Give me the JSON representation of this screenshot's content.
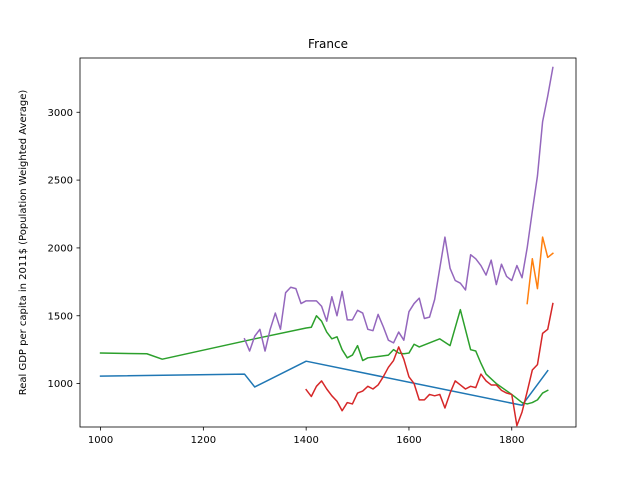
{
  "chart_data": {
    "type": "line",
    "title": "France",
    "xlabel": "",
    "ylabel": "Real GDP per capita in 2011$ (Population Weighted Average)",
    "xlim": [
      960,
      1925
    ],
    "ylim": [
      680,
      3400
    ],
    "xticks": [
      1000,
      1200,
      1400,
      1600,
      1800
    ],
    "yticks": [
      1000,
      1500,
      2000,
      2500,
      3000
    ],
    "grid": false,
    "series": [
      {
        "color": "#1f77b4",
        "points": [
          [
            1000,
            1055
          ],
          [
            1280,
            1070
          ],
          [
            1300,
            975
          ],
          [
            1400,
            1165
          ],
          [
            1820,
            840
          ],
          [
            1870,
            1095
          ]
        ]
      },
      {
        "color": "#ff7f0e",
        "points": [
          [
            1830,
            1590
          ],
          [
            1840,
            1920
          ],
          [
            1850,
            1700
          ],
          [
            1860,
            2080
          ],
          [
            1870,
            1930
          ],
          [
            1880,
            1960
          ]
        ]
      },
      {
        "color": "#2ca02c",
        "points": [
          [
            1000,
            1225
          ],
          [
            1090,
            1220
          ],
          [
            1120,
            1180
          ],
          [
            1300,
            1330
          ],
          [
            1400,
            1410
          ],
          [
            1410,
            1415
          ],
          [
            1420,
            1500
          ],
          [
            1430,
            1460
          ],
          [
            1440,
            1380
          ],
          [
            1450,
            1330
          ],
          [
            1460,
            1345
          ],
          [
            1470,
            1250
          ],
          [
            1480,
            1190
          ],
          [
            1490,
            1210
          ],
          [
            1500,
            1280
          ],
          [
            1510,
            1170
          ],
          [
            1520,
            1190
          ],
          [
            1540,
            1200
          ],
          [
            1560,
            1210
          ],
          [
            1570,
            1250
          ],
          [
            1580,
            1225
          ],
          [
            1590,
            1220
          ],
          [
            1600,
            1225
          ],
          [
            1610,
            1290
          ],
          [
            1620,
            1270
          ],
          [
            1660,
            1330
          ],
          [
            1680,
            1280
          ],
          [
            1700,
            1545
          ],
          [
            1720,
            1250
          ],
          [
            1730,
            1240
          ],
          [
            1740,
            1150
          ],
          [
            1750,
            1070
          ],
          [
            1770,
            1000
          ],
          [
            1800,
            920
          ],
          [
            1820,
            860
          ],
          [
            1830,
            850
          ],
          [
            1840,
            860
          ],
          [
            1850,
            880
          ],
          [
            1860,
            930
          ],
          [
            1870,
            950
          ]
        ]
      },
      {
        "color": "#d62728",
        "points": [
          [
            1400,
            955
          ],
          [
            1410,
            905
          ],
          [
            1420,
            980
          ],
          [
            1430,
            1020
          ],
          [
            1440,
            960
          ],
          [
            1450,
            910
          ],
          [
            1460,
            870
          ],
          [
            1470,
            800
          ],
          [
            1480,
            860
          ],
          [
            1490,
            850
          ],
          [
            1500,
            930
          ],
          [
            1510,
            945
          ],
          [
            1520,
            980
          ],
          [
            1530,
            960
          ],
          [
            1540,
            990
          ],
          [
            1550,
            1050
          ],
          [
            1560,
            1120
          ],
          [
            1570,
            1170
          ],
          [
            1580,
            1270
          ],
          [
            1590,
            1180
          ],
          [
            1600,
            1050
          ],
          [
            1610,
            1000
          ],
          [
            1620,
            880
          ],
          [
            1630,
            880
          ],
          [
            1640,
            920
          ],
          [
            1650,
            910
          ],
          [
            1660,
            920
          ],
          [
            1670,
            820
          ],
          [
            1680,
            930
          ],
          [
            1690,
            1020
          ],
          [
            1700,
            990
          ],
          [
            1710,
            960
          ],
          [
            1720,
            980
          ],
          [
            1730,
            970
          ],
          [
            1740,
            1070
          ],
          [
            1750,
            1020
          ],
          [
            1760,
            990
          ],
          [
            1770,
            990
          ],
          [
            1780,
            950
          ],
          [
            1790,
            930
          ],
          [
            1800,
            920
          ],
          [
            1810,
            690
          ],
          [
            1820,
            790
          ],
          [
            1830,
            940
          ],
          [
            1840,
            1100
          ],
          [
            1850,
            1140
          ],
          [
            1860,
            1370
          ],
          [
            1870,
            1400
          ],
          [
            1880,
            1590
          ]
        ]
      },
      {
        "color": "#9467bd",
        "points": [
          [
            1280,
            1330
          ],
          [
            1290,
            1240
          ],
          [
            1300,
            1350
          ],
          [
            1310,
            1400
          ],
          [
            1320,
            1240
          ],
          [
            1330,
            1400
          ],
          [
            1340,
            1520
          ],
          [
            1350,
            1400
          ],
          [
            1360,
            1670
          ],
          [
            1370,
            1710
          ],
          [
            1380,
            1700
          ],
          [
            1390,
            1590
          ],
          [
            1400,
            1610
          ],
          [
            1410,
            1610
          ],
          [
            1420,
            1610
          ],
          [
            1430,
            1570
          ],
          [
            1440,
            1460
          ],
          [
            1450,
            1640
          ],
          [
            1460,
            1500
          ],
          [
            1470,
            1680
          ],
          [
            1480,
            1470
          ],
          [
            1490,
            1470
          ],
          [
            1500,
            1540
          ],
          [
            1510,
            1520
          ],
          [
            1520,
            1400
          ],
          [
            1530,
            1390
          ],
          [
            1540,
            1510
          ],
          [
            1550,
            1420
          ],
          [
            1560,
            1320
          ],
          [
            1570,
            1300
          ],
          [
            1580,
            1380
          ],
          [
            1590,
            1320
          ],
          [
            1600,
            1530
          ],
          [
            1610,
            1590
          ],
          [
            1620,
            1630
          ],
          [
            1630,
            1480
          ],
          [
            1640,
            1490
          ],
          [
            1650,
            1620
          ],
          [
            1660,
            1850
          ],
          [
            1670,
            2080
          ],
          [
            1680,
            1850
          ],
          [
            1690,
            1760
          ],
          [
            1700,
            1740
          ],
          [
            1710,
            1690
          ],
          [
            1720,
            1950
          ],
          [
            1730,
            1920
          ],
          [
            1740,
            1870
          ],
          [
            1750,
            1800
          ],
          [
            1760,
            1910
          ],
          [
            1770,
            1730
          ],
          [
            1780,
            1880
          ],
          [
            1790,
            1790
          ],
          [
            1800,
            1760
          ],
          [
            1810,
            1870
          ],
          [
            1820,
            1780
          ],
          [
            1830,
            2000
          ],
          [
            1840,
            2270
          ],
          [
            1850,
            2530
          ],
          [
            1860,
            2930
          ],
          [
            1870,
            3120
          ],
          [
            1880,
            3330
          ]
        ]
      }
    ]
  }
}
